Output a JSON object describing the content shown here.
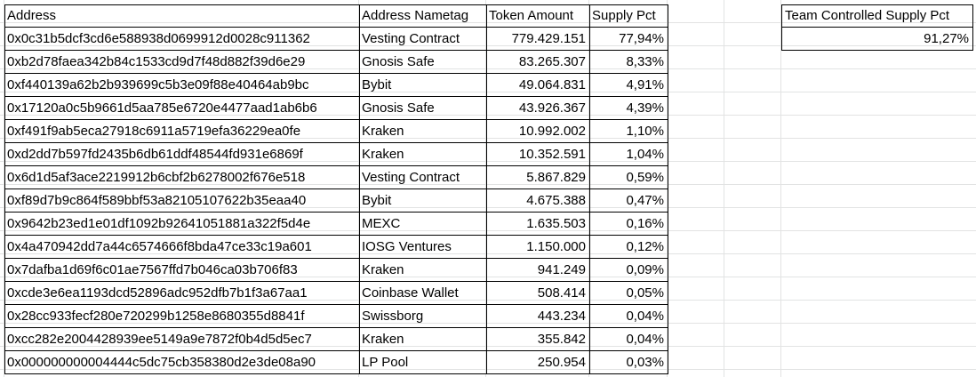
{
  "headers": {
    "address": "Address",
    "nametag": "Address Nametag",
    "amount": "Token Amount",
    "pct": "Supply Pct"
  },
  "rows": [
    {
      "address": "0x0c31b5dcf3cd6e588938d0699912d0028c911362",
      "nametag": "Vesting Contract",
      "amount": "779.429.151",
      "pct": "77,94%"
    },
    {
      "address": "0xb2d78faea342b84c1533cd9d7f48d882f39d6e29",
      "nametag": "Gnosis Safe",
      "amount": "83.265.307",
      "pct": "8,33%"
    },
    {
      "address": "0xf440139a62b2b939699c5b3e09f88e40464ab9bc",
      "nametag": "Bybit",
      "amount": "49.064.831",
      "pct": "4,91%"
    },
    {
      "address": "0x17120a0c5b9661d5aa785e6720e4477aad1ab6b6",
      "nametag": "Gnosis Safe",
      "amount": "43.926.367",
      "pct": "4,39%"
    },
    {
      "address": "0xf491f9ab5eca27918c6911a5719efa36229ea0fe",
      "nametag": "Kraken",
      "amount": "10.992.002",
      "pct": "1,10%"
    },
    {
      "address": "0xd2dd7b597fd2435b6db61ddf48544fd931e6869f",
      "nametag": "Kraken",
      "amount": "10.352.591",
      "pct": "1,04%"
    },
    {
      "address": "0x6d1d5af3ace2219912b6cbf2b6278002f676e518",
      "nametag": "Vesting Contract",
      "amount": "5.867.829",
      "pct": "0,59%"
    },
    {
      "address": "0xf89d7b9c864f589bbf53a82105107622b35eaa40",
      "nametag": "Bybit",
      "amount": "4.675.388",
      "pct": "0,47%"
    },
    {
      "address": "0x9642b23ed1e01df1092b92641051881a322f5d4e",
      "nametag": "MEXC",
      "amount": "1.635.503",
      "pct": "0,16%"
    },
    {
      "address": "0x4a470942dd7a44c6574666f8bda47ce33c19a601",
      "nametag": "IOSG Ventures",
      "amount": "1.150.000",
      "pct": "0,12%"
    },
    {
      "address": "0x7dafba1d69f6c01ae7567ffd7b046ca03b706f83",
      "nametag": "Kraken",
      "amount": "941.249",
      "pct": "0,09%"
    },
    {
      "address": "0xcde3e6ea1193dcd52896adc952dfb7b1f3a67aa1",
      "nametag": "Coinbase Wallet",
      "amount": "508.414",
      "pct": "0,05%"
    },
    {
      "address": "0x28cc933fecf280e720299b1258e8680355d8841f",
      "nametag": "Swissborg",
      "amount": "443.234",
      "pct": "0,04%"
    },
    {
      "address": "0xcc282e2004428939ee5149a9e7872f0b4d5d5ec7",
      "nametag": "Kraken",
      "amount": "355.842",
      "pct": "0,04%"
    },
    {
      "address": "0x000000000004444c5dc75cb358380d2e3de08a90",
      "nametag": "LP Pool",
      "amount": "250.954",
      "pct": "0,03%"
    }
  ],
  "summary": {
    "label": "Team Controlled Supply Pct",
    "value": "91,27%"
  }
}
